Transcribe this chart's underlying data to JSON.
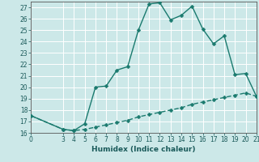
{
  "title": "",
  "xlabel": "Humidex (Indice chaleur)",
  "ylabel": "",
  "background_color": "#cce8e8",
  "grid_color": "#ffffff",
  "line_color": "#1a7a6e",
  "xlim": [
    0,
    21
  ],
  "ylim": [
    16,
    27.5
  ],
  "xticks": [
    0,
    3,
    4,
    5,
    6,
    7,
    8,
    9,
    10,
    11,
    12,
    13,
    14,
    15,
    16,
    17,
    18,
    19,
    20,
    21
  ],
  "yticks": [
    16,
    17,
    18,
    19,
    20,
    21,
    22,
    23,
    24,
    25,
    26,
    27
  ],
  "line1_x": [
    0,
    3,
    4,
    5,
    6,
    7,
    8,
    9,
    10,
    11,
    12,
    13,
    14,
    15,
    16,
    17,
    18,
    19,
    20,
    21
  ],
  "line1_y": [
    17.5,
    16.3,
    16.2,
    16.8,
    20.0,
    20.1,
    21.5,
    21.8,
    25.0,
    27.3,
    27.4,
    25.9,
    26.3,
    27.1,
    25.1,
    23.8,
    24.5,
    21.1,
    21.2,
    19.2
  ],
  "line2_x": [
    0,
    3,
    4,
    5,
    6,
    7,
    8,
    9,
    10,
    11,
    12,
    13,
    14,
    15,
    16,
    17,
    18,
    19,
    20,
    21
  ],
  "line2_y": [
    17.5,
    16.3,
    16.2,
    16.3,
    16.5,
    16.7,
    16.9,
    17.1,
    17.4,
    17.6,
    17.8,
    18.0,
    18.2,
    18.5,
    18.7,
    18.9,
    19.1,
    19.3,
    19.5,
    19.2
  ],
  "marker_size": 2.5,
  "linewidth": 1.0,
  "tick_fontsize": 5.5,
  "xlabel_fontsize": 6.5
}
